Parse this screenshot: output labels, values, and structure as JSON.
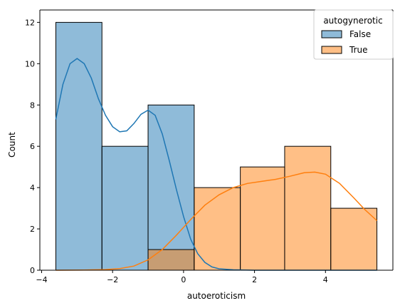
{
  "chart_data": {
    "type": "histogram",
    "title": "",
    "xlabel": "autoeroticism",
    "ylabel": "Count",
    "xlim": [
      -4.05,
      5.9
    ],
    "ylim": [
      0,
      12.6
    ],
    "xticks": [
      -4,
      -2,
      0,
      2,
      4
    ],
    "yticks": [
      0,
      2,
      4,
      6,
      8,
      10,
      12
    ],
    "grid": false,
    "bin_edges": [
      -3.6,
      -2.3,
      -1.0,
      0.3,
      1.6,
      2.85,
      4.15,
      5.45
    ],
    "legend": {
      "title": "autogynerotic",
      "position": "top-right"
    },
    "series": [
      {
        "name": "False",
        "color": "#1f77b4",
        "counts": [
          12,
          6,
          8,
          0,
          0,
          0,
          0
        ],
        "kde": [
          [
            -3.6,
            7.3
          ],
          [
            -3.4,
            9.0
          ],
          [
            -3.2,
            10.0
          ],
          [
            -3.0,
            10.25
          ],
          [
            -2.8,
            10.0
          ],
          [
            -2.6,
            9.3
          ],
          [
            -2.4,
            8.3
          ],
          [
            -2.2,
            7.5
          ],
          [
            -2.0,
            6.95
          ],
          [
            -1.8,
            6.7
          ],
          [
            -1.6,
            6.75
          ],
          [
            -1.4,
            7.1
          ],
          [
            -1.2,
            7.55
          ],
          [
            -1.0,
            7.75
          ],
          [
            -0.8,
            7.5
          ],
          [
            -0.6,
            6.6
          ],
          [
            -0.4,
            5.3
          ],
          [
            -0.2,
            3.9
          ],
          [
            0.0,
            2.6
          ],
          [
            0.2,
            1.5
          ],
          [
            0.4,
            0.8
          ],
          [
            0.6,
            0.38
          ],
          [
            0.8,
            0.16
          ],
          [
            1.0,
            0.07
          ],
          [
            1.4,
            0.02
          ],
          [
            2.0,
            0.0
          ],
          [
            3.0,
            0.0
          ],
          [
            4.0,
            0.0
          ],
          [
            5.45,
            0.0
          ]
        ]
      },
      {
        "name": "True",
        "color": "#ff7f0e",
        "counts": [
          0,
          0,
          1,
          4,
          5,
          6,
          3
        ],
        "kde": [
          [
            -3.6,
            0.0
          ],
          [
            -2.8,
            0.01
          ],
          [
            -2.2,
            0.03
          ],
          [
            -1.8,
            0.08
          ],
          [
            -1.4,
            0.2
          ],
          [
            -1.0,
            0.5
          ],
          [
            -0.6,
            1.0
          ],
          [
            -0.2,
            1.7
          ],
          [
            0.2,
            2.45
          ],
          [
            0.6,
            3.15
          ],
          [
            1.0,
            3.65
          ],
          [
            1.4,
            4.0
          ],
          [
            1.8,
            4.2
          ],
          [
            2.2,
            4.3
          ],
          [
            2.6,
            4.4
          ],
          [
            3.0,
            4.55
          ],
          [
            3.4,
            4.72
          ],
          [
            3.7,
            4.75
          ],
          [
            4.0,
            4.65
          ],
          [
            4.4,
            4.2
          ],
          [
            4.8,
            3.5
          ],
          [
            5.1,
            2.95
          ],
          [
            5.45,
            2.4
          ]
        ]
      }
    ]
  }
}
